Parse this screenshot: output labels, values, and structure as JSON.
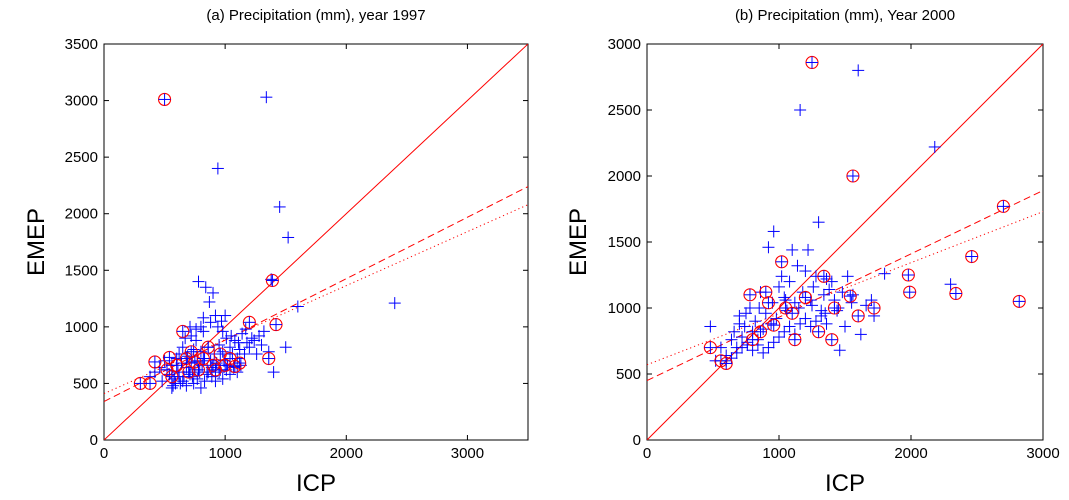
{
  "chart_data": [
    {
      "type": "scatter",
      "title": "(a) Precipitation (mm), year 1997",
      "xlabel": "ICP",
      "ylabel": "EMEP",
      "xlim": [
        0,
        3500
      ],
      "ylim": [
        0,
        3500
      ],
      "xticks": [
        0,
        1000,
        2000,
        3000
      ],
      "yticks": [
        0,
        500,
        1000,
        1500,
        2000,
        2500,
        3000,
        3500
      ],
      "grid": false,
      "colors": {
        "plus": "#0000ff",
        "circle": "#ff0000",
        "line": "#ff0000"
      },
      "series": [
        {
          "marker": "plus",
          "points": [
            [
              380,
              560
            ],
            [
              420,
              600
            ],
            [
              460,
              640
            ],
            [
              480,
              520
            ],
            [
              500,
              700
            ],
            [
              520,
              620
            ],
            [
              540,
              580
            ],
            [
              560,
              660
            ],
            [
              570,
              480
            ],
            [
              580,
              540
            ],
            [
              600,
              720
            ],
            [
              610,
              600
            ],
            [
              620,
              760
            ],
            [
              630,
              500
            ],
            [
              640,
              680
            ],
            [
              650,
              820
            ],
            [
              660,
              560
            ],
            [
              670,
              900
            ],
            [
              680,
              640
            ],
            [
              690,
              740
            ],
            [
              700,
              600
            ],
            [
              710,
              1000
            ],
            [
              720,
              680
            ],
            [
              730,
              560
            ],
            [
              740,
              800
            ],
            [
              750,
              620
            ],
            [
              760,
              880
            ],
            [
              770,
              700
            ],
            [
              780,
              1400
            ],
            [
              790,
              600
            ],
            [
              800,
              780
            ],
            [
              810,
              660
            ],
            [
              820,
              960
            ],
            [
              830,
              720
            ],
            [
              840,
              1350
            ],
            [
              850,
              580
            ],
            [
              860,
              820
            ],
            [
              870,
              1220
            ],
            [
              880,
              700
            ],
            [
              890,
              640
            ],
            [
              900,
              1300
            ],
            [
              910,
              760
            ],
            [
              920,
              1100
            ],
            [
              930,
              680
            ],
            [
              940,
              2400
            ],
            [
              950,
              840
            ],
            [
              960,
              620
            ],
            [
              970,
              1050
            ],
            [
              980,
              780
            ],
            [
              990,
              700
            ],
            [
              1000,
              1100
            ],
            [
              1010,
              900
            ],
            [
              1020,
              660
            ],
            [
              1040,
              820
            ],
            [
              1060,
              760
            ],
            [
              1080,
              880
            ],
            [
              1100,
              720
            ],
            [
              1120,
              800
            ],
            [
              1140,
              940
            ],
            [
              1160,
              760
            ],
            [
              1180,
              860
            ],
            [
              1200,
              820
            ],
            [
              1220,
              900
            ],
            [
              1240,
              880
            ],
            [
              1260,
              760
            ],
            [
              1280,
              920
            ],
            [
              1300,
              840
            ],
            [
              1320,
              960
            ],
            [
              1340,
              3030
            ],
            [
              1360,
              780
            ],
            [
              1380,
              1420
            ],
            [
              1400,
              600
            ],
            [
              1450,
              2060
            ],
            [
              1500,
              820
            ],
            [
              1520,
              1790
            ],
            [
              1600,
              1180
            ],
            [
              2400,
              1210
            ],
            [
              560,
              460
            ],
            [
              590,
              500
            ],
            [
              620,
              560
            ],
            [
              650,
              520
            ],
            [
              680,
              480
            ],
            [
              710,
              580
            ],
            [
              740,
              500
            ],
            [
              770,
              540
            ],
            [
              800,
              460
            ],
            [
              830,
              520
            ],
            [
              860,
              600
            ],
            [
              890,
              560
            ],
            [
              920,
              520
            ],
            [
              950,
              600
            ],
            [
              980,
              540
            ],
            [
              1010,
              620
            ],
            [
              1040,
              580
            ],
            [
              1070,
              640
            ],
            [
              1100,
              600
            ],
            [
              1130,
              660
            ],
            [
              720,
              920
            ],
            [
              760,
              980
            ],
            [
              800,
              1000
            ],
            [
              820,
              1080
            ],
            [
              880,
              1040
            ],
            [
              940,
              1000
            ],
            [
              980,
              960
            ],
            [
              1050,
              920
            ],
            [
              1110,
              860
            ],
            [
              1170,
              980
            ]
          ]
        },
        {
          "marker": "circle-plus",
          "points": [
            [
              300,
              500
            ],
            [
              380,
              500
            ],
            [
              420,
              690
            ],
            [
              500,
              3010
            ],
            [
              520,
              620
            ],
            [
              540,
              730
            ],
            [
              560,
              560
            ],
            [
              600,
              660
            ],
            [
              650,
              960
            ],
            [
              680,
              720
            ],
            [
              700,
              600
            ],
            [
              720,
              780
            ],
            [
              750,
              690
            ],
            [
              780,
              620
            ],
            [
              820,
              720
            ],
            [
              860,
              820
            ],
            [
              900,
              660
            ],
            [
              920,
              620
            ],
            [
              960,
              760
            ],
            [
              1000,
              660
            ],
            [
              1040,
              720
            ],
            [
              1080,
              650
            ],
            [
              1120,
              680
            ],
            [
              1200,
              1040
            ],
            [
              1360,
              720
            ],
            [
              1390,
              1410
            ],
            [
              1420,
              1020
            ]
          ]
        }
      ],
      "lines": [
        {
          "style": "solid",
          "x": [
            0,
            3500
          ],
          "y": [
            0,
            3500
          ]
        },
        {
          "style": "dashed",
          "x": [
            0,
            3500
          ],
          "y": [
            340,
            2240
          ]
        },
        {
          "style": "dotted",
          "x": [
            0,
            3500
          ],
          "y": [
            410,
            2080
          ]
        }
      ]
    },
    {
      "type": "scatter",
      "title": "(b) Precipitation (mm), Year 2000",
      "xlabel": "ICP",
      "ylabel": "EMEP",
      "xlim": [
        0,
        3000
      ],
      "ylim": [
        0,
        3000
      ],
      "xticks": [
        0,
        1000,
        2000,
        3000
      ],
      "yticks": [
        0,
        500,
        1000,
        1500,
        2000,
        2500,
        3000
      ],
      "grid": false,
      "colors": {
        "plus": "#0000ff",
        "circle": "#ff0000",
        "line": "#ff0000"
      },
      "series": [
        {
          "marker": "plus",
          "points": [
            [
              480,
              860
            ],
            [
              520,
              600
            ],
            [
              560,
              700
            ],
            [
              600,
              640
            ],
            [
              640,
              760
            ],
            [
              660,
              820
            ],
            [
              680,
              700
            ],
            [
              700,
              940
            ],
            [
              720,
              780
            ],
            [
              740,
              860
            ],
            [
              760,
              720
            ],
            [
              780,
              1000
            ],
            [
              800,
              820
            ],
            [
              820,
              900
            ],
            [
              840,
              760
            ],
            [
              860,
              1120
            ],
            [
              880,
              840
            ],
            [
              900,
              960
            ],
            [
              920,
              1460
            ],
            [
              940,
              880
            ],
            [
              960,
              1580
            ],
            [
              980,
              920
            ],
            [
              1000,
              1160
            ],
            [
              1020,
              1240
            ],
            [
              1040,
              1080
            ],
            [
              1060,
              980
            ],
            [
              1080,
              1200
            ],
            [
              1100,
              1440
            ],
            [
              1120,
              1040
            ],
            [
              1140,
              1320
            ],
            [
              1160,
              2500
            ],
            [
              1180,
              1120
            ],
            [
              1200,
              1280
            ],
            [
              1220,
              1440
            ],
            [
              1240,
              1060
            ],
            [
              1260,
              1160
            ],
            [
              1280,
              1240
            ],
            [
              1300,
              1650
            ],
            [
              1320,
              980
            ],
            [
              1340,
              1100
            ],
            [
              1360,
              1220
            ],
            [
              1380,
              1140
            ],
            [
              1400,
              1200
            ],
            [
              1420,
              1060
            ],
            [
              1440,
              980
            ],
            [
              1460,
              680
            ],
            [
              1480,
              1120
            ],
            [
              1500,
              860
            ],
            [
              1520,
              1240
            ],
            [
              1560,
              1100
            ],
            [
              1600,
              2800
            ],
            [
              1620,
              800
            ],
            [
              1660,
              1020
            ],
            [
              1700,
              1060
            ],
            [
              1720,
              940
            ],
            [
              1800,
              1260
            ],
            [
              2180,
              2220
            ],
            [
              2300,
              1180
            ],
            [
              600,
              600
            ],
            [
              640,
              620
            ],
            [
              680,
              660
            ],
            [
              720,
              700
            ],
            [
              760,
              740
            ],
            [
              800,
              680
            ],
            [
              840,
              720
            ],
            [
              880,
              660
            ],
            [
              920,
              700
            ],
            [
              960,
              740
            ],
            [
              1000,
              780
            ],
            [
              1040,
              820
            ],
            [
              1080,
              860
            ],
            [
              1120,
              800
            ],
            [
              1160,
              880
            ],
            [
              1200,
              920
            ],
            [
              1240,
              860
            ],
            [
              1280,
              900
            ],
            [
              1320,
              940
            ],
            [
              1360,
              880
            ],
            [
              700,
              880
            ],
            [
              750,
              960
            ],
            [
              850,
              1000
            ],
            [
              950,
              1040
            ],
            [
              1050,
              1060
            ],
            [
              1150,
              1000
            ],
            [
              1250,
              1020
            ],
            [
              1350,
              960
            ],
            [
              1450,
              1000
            ],
            [
              1550,
              1040
            ]
          ]
        },
        {
          "marker": "circle-plus",
          "points": [
            [
              480,
              700
            ],
            [
              560,
              600
            ],
            [
              600,
              580
            ],
            [
              780,
              1100
            ],
            [
              800,
              760
            ],
            [
              860,
              820
            ],
            [
              900,
              1120
            ],
            [
              920,
              1040
            ],
            [
              960,
              870
            ],
            [
              1020,
              1350
            ],
            [
              1050,
              1000
            ],
            [
              1100,
              960
            ],
            [
              1120,
              760
            ],
            [
              1200,
              1080
            ],
            [
              1250,
              2860
            ],
            [
              1300,
              820
            ],
            [
              1340,
              1240
            ],
            [
              1400,
              760
            ],
            [
              1420,
              1000
            ],
            [
              1540,
              1090
            ],
            [
              1560,
              2000
            ],
            [
              1600,
              940
            ],
            [
              1720,
              1000
            ],
            [
              1980,
              1250
            ],
            [
              1990,
              1120
            ],
            [
              2340,
              1110
            ],
            [
              2460,
              1390
            ],
            [
              2700,
              1770
            ],
            [
              2820,
              1050
            ]
          ]
        }
      ],
      "lines": [
        {
          "style": "solid",
          "x": [
            0,
            3000
          ],
          "y": [
            0,
            3000
          ]
        },
        {
          "style": "dashed",
          "x": [
            0,
            3000
          ],
          "y": [
            450,
            1890
          ]
        },
        {
          "style": "dotted",
          "x": [
            0,
            3000
          ],
          "y": [
            570,
            1730
          ]
        }
      ]
    }
  ]
}
